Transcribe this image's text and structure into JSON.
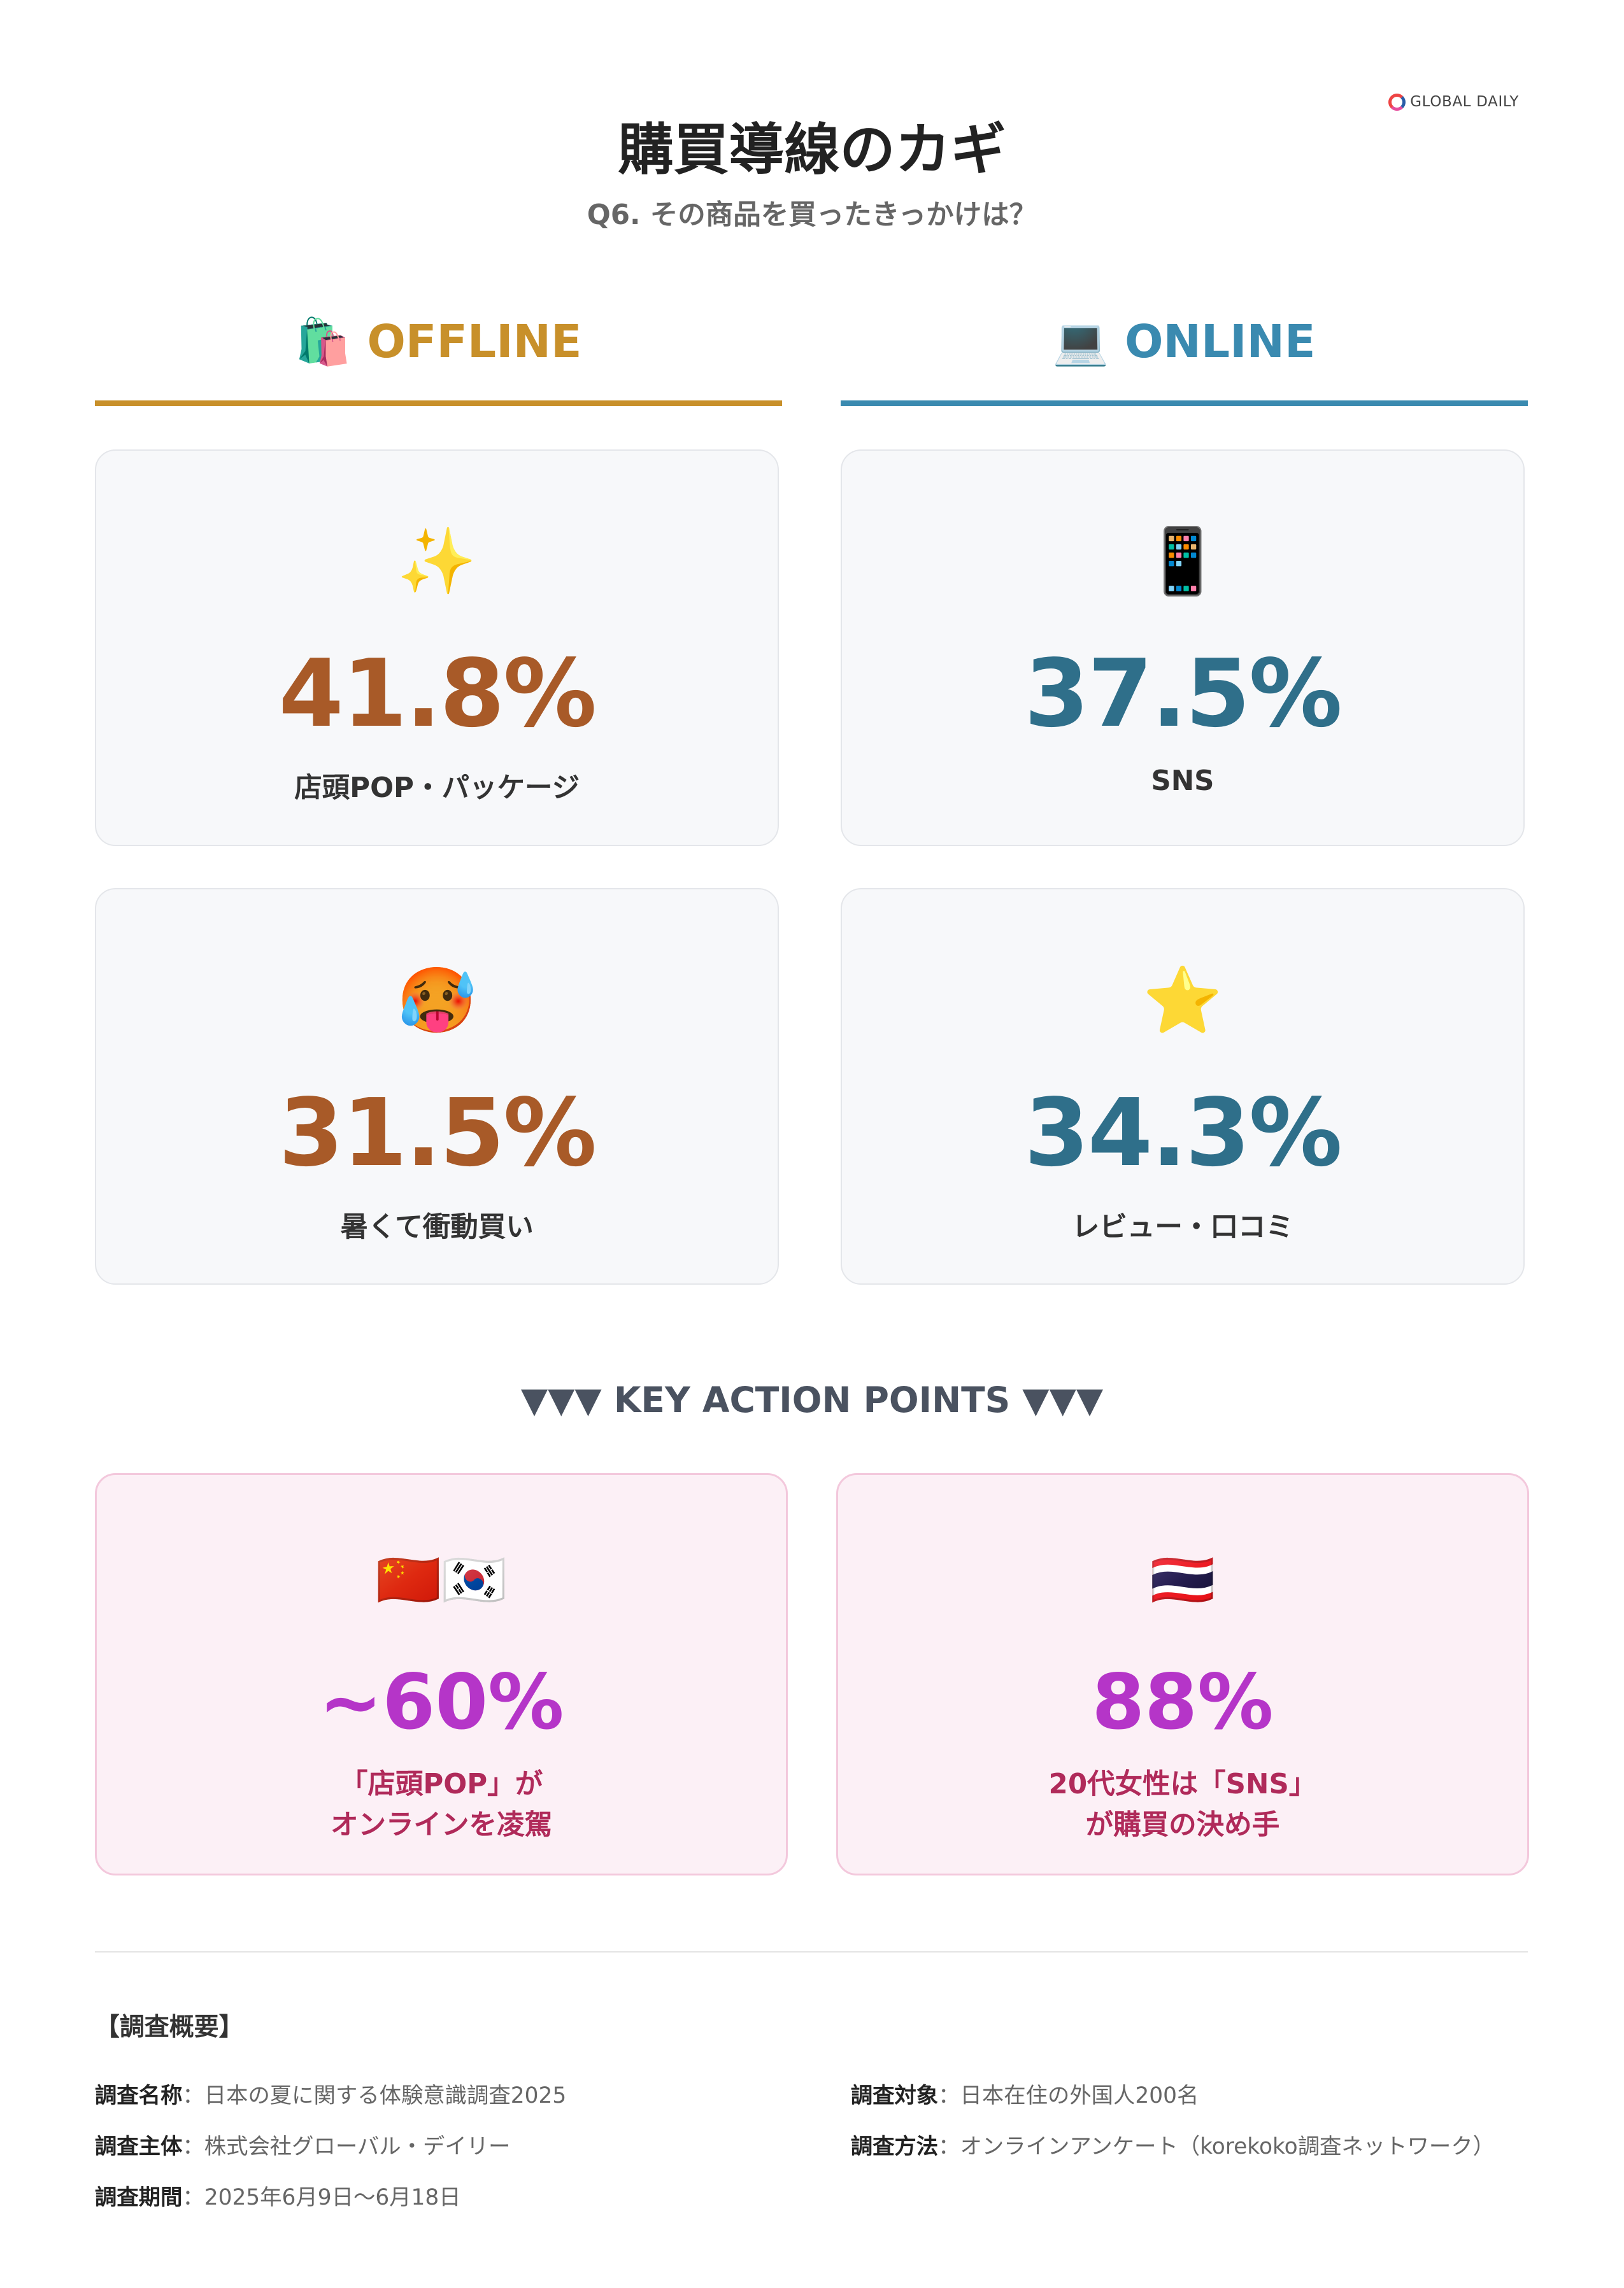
{
  "logo": {
    "text": "GLOBAL DAILY"
  },
  "header": {
    "title": "購買導線のカギ",
    "subtitle": "Q6. その商品を買ったきっかけは？"
  },
  "columns": {
    "offline": {
      "icon": "🛍️",
      "label": "OFFLINE",
      "color": "#c8902a"
    },
    "online": {
      "icon": "💻",
      "label": "ONLINE",
      "color": "#3a8ab0"
    }
  },
  "cards": [
    {
      "icon": "✨",
      "value": "41.8%",
      "label": "店頭POP・パッケージ"
    },
    {
      "icon": "📱",
      "value": "37.5%",
      "label": "SNS"
    },
    {
      "icon": "🥵",
      "value": "31.5%",
      "label": "暑くて衝動買い"
    },
    {
      "icon": "⭐",
      "value": "34.3%",
      "label": "レビュー・口コミ"
    }
  ],
  "key": {
    "heading": "▼▼▼ KEY ACTION POINTS ▼▼▼",
    "items": [
      {
        "icon": "🇨🇳🇰🇷",
        "value": "~60%",
        "label": "「店頭POP」が\nオンラインを凌駕"
      },
      {
        "icon": "🇹🇭",
        "value": "88%",
        "label": "20代女性は「SNS」\nが購買の決め手"
      }
    ]
  },
  "footer": {
    "title": "【調査概要】",
    "rows": [
      {
        "k": "調査名称",
        "v": "：日本の夏に関する体験意識調査2025"
      },
      {
        "k": "調査対象",
        "v": "：日本在住の外国人200名"
      },
      {
        "k": "調査主体",
        "v": "：株式会社グローバル・デイリー"
      },
      {
        "k": "調査方法",
        "v": "：オンラインアンケート（korekoko調査ネットワーク）"
      },
      {
        "k": "調査期間",
        "v": "：2025年6月9日〜6月18日"
      }
    ]
  }
}
